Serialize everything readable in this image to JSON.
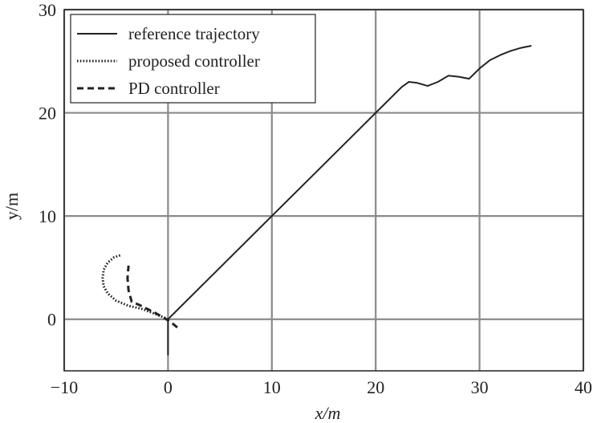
{
  "chart_data": {
    "type": "line",
    "title": "",
    "xlabel": "x/m",
    "ylabel": "y/m",
    "xlim": [
      -10,
      40
    ],
    "ylim": [
      -5,
      30
    ],
    "xticks": [
      -10,
      0,
      10,
      20,
      30,
      40
    ],
    "yticks": [
      0,
      10,
      20,
      30
    ],
    "xtick_labels": [
      "−10",
      "0",
      "10",
      "20",
      "30",
      "40"
    ],
    "ytick_labels": [
      "0",
      "10",
      "20",
      "30"
    ],
    "grid": true,
    "legend_position": "top-left",
    "series": [
      {
        "name": "reference trajectory",
        "style": "solid",
        "color": "#222222",
        "x": [
          0,
          0,
          5,
          10,
          15,
          20,
          22.5,
          23.2,
          24.0,
          25.0,
          26.0,
          27.0,
          28.0,
          29.0,
          30.0,
          31.0,
          32.0,
          33.0,
          34.0,
          35.0
        ],
        "y": [
          -3.5,
          0,
          5,
          10,
          15,
          20,
          22.5,
          23.0,
          22.9,
          22.6,
          23.0,
          23.6,
          23.5,
          23.3,
          24.3,
          25.1,
          25.6,
          26.0,
          26.3,
          26.5
        ]
      },
      {
        "name": "proposed controller",
        "style": "dotted",
        "color": "#222222",
        "x": [
          0,
          -1.2,
          -2.5,
          -3.8,
          -5.0,
          -5.8,
          -6.2,
          -6.3,
          -6.2,
          -5.8,
          -5.2,
          -4.6
        ],
        "y": [
          0,
          0.5,
          1.0,
          1.3,
          1.8,
          2.5,
          3.2,
          4.0,
          4.8,
          5.5,
          6.0,
          6.2
        ]
      },
      {
        "name": "PD controller",
        "style": "dashed",
        "color": "#222222",
        "x": [
          0.9,
          0.3,
          -0.5,
          -1.2,
          -2.0,
          -2.8,
          -3.5,
          -3.8,
          -3.9,
          -3.8
        ],
        "y": [
          -0.8,
          -0.3,
          0.2,
          0.6,
          1.0,
          1.4,
          1.7,
          2.8,
          4.0,
          5.2
        ]
      }
    ]
  }
}
